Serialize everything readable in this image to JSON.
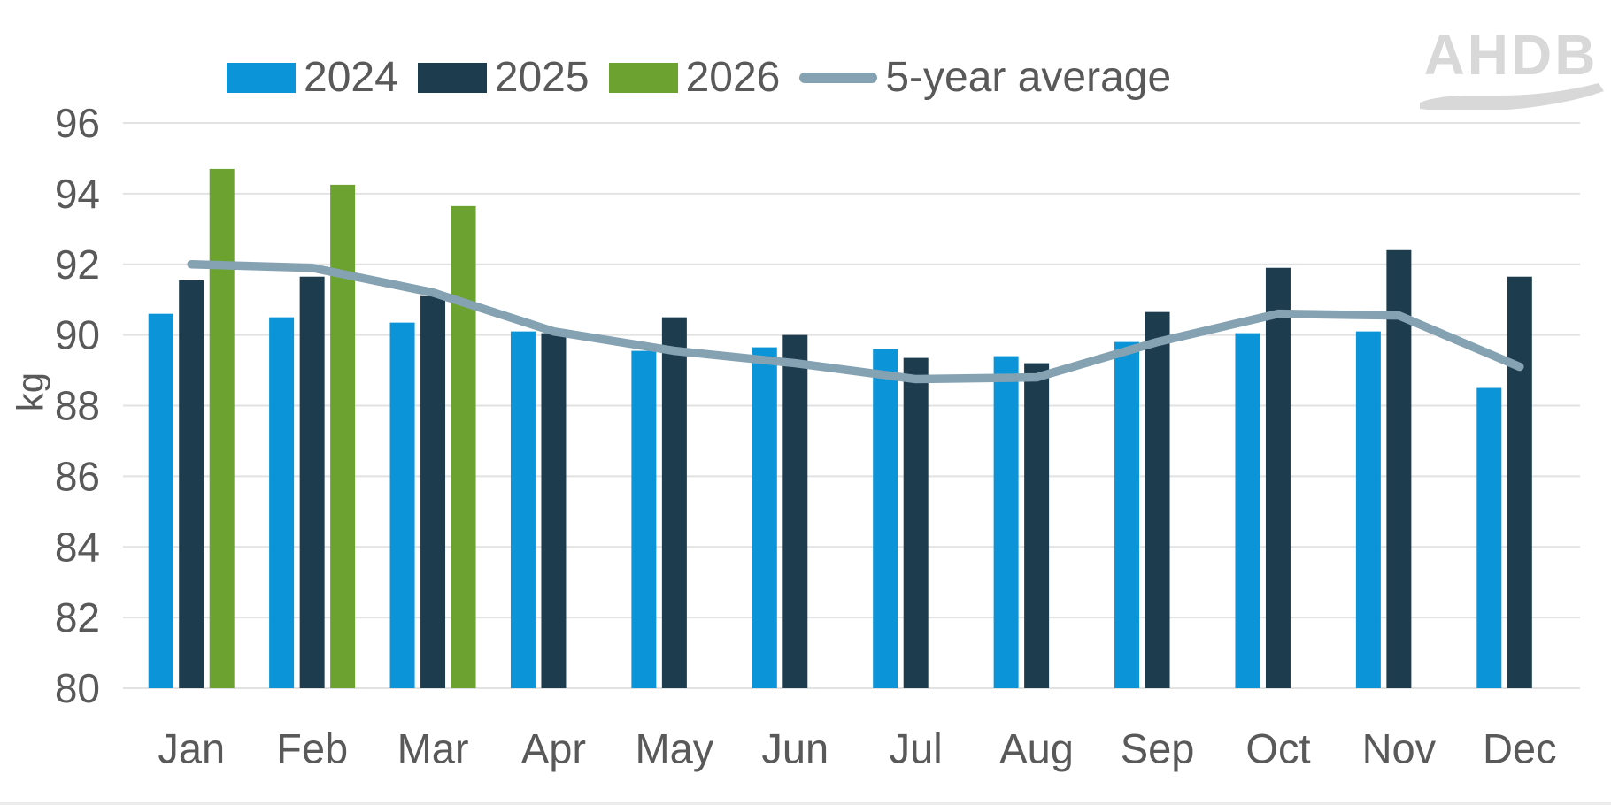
{
  "page": {
    "background": "#ffffff"
  },
  "logo": {
    "text": "AHDB",
    "color": "#d8d8d8"
  },
  "axis": {
    "label_color": "#595959",
    "grid_color": "#e2e2e2",
    "ylabel": "kg"
  },
  "legend": {
    "labels": [
      "2024",
      "2025",
      "2026",
      "5-year average"
    ]
  },
  "chart_data": {
    "type": "bar",
    "title": "",
    "categories": [
      "Jan",
      "Feb",
      "Mar",
      "Apr",
      "May",
      "Jun",
      "Jul",
      "Aug",
      "Sep",
      "Oct",
      "Nov",
      "Dec"
    ],
    "series": [
      {
        "name": "2024",
        "type": "bar",
        "color": "#0b95d8",
        "values": [
          90.6,
          90.5,
          90.35,
          90.1,
          89.55,
          89.65,
          89.6,
          89.4,
          89.8,
          90.05,
          90.1,
          88.5
        ]
      },
      {
        "name": "2025",
        "type": "bar",
        "color": "#1d3d4e",
        "values": [
          91.55,
          91.65,
          91.1,
          90.05,
          90.5,
          90.0,
          89.35,
          89.2,
          90.65,
          91.9,
          92.4,
          91.65
        ]
      },
      {
        "name": "2026",
        "type": "bar",
        "color": "#6ca330",
        "values": [
          94.7,
          94.25,
          93.65,
          null,
          null,
          null,
          null,
          null,
          null,
          null,
          null,
          null
        ]
      },
      {
        "name": "5-year average",
        "type": "line",
        "color": "#85a2b2",
        "values": [
          92.0,
          91.9,
          91.2,
          90.1,
          89.55,
          89.2,
          88.75,
          88.8,
          89.8,
          90.6,
          90.55,
          89.1
        ]
      }
    ],
    "xlabel": "",
    "ylabel": "kg",
    "ylim": [
      80,
      96
    ],
    "ytick_step": 2,
    "ytick_labels": [
      "96",
      "94",
      "92",
      "90",
      "88",
      "86",
      "84",
      "82",
      "80"
    ],
    "grid": true,
    "legend_position": "top"
  }
}
